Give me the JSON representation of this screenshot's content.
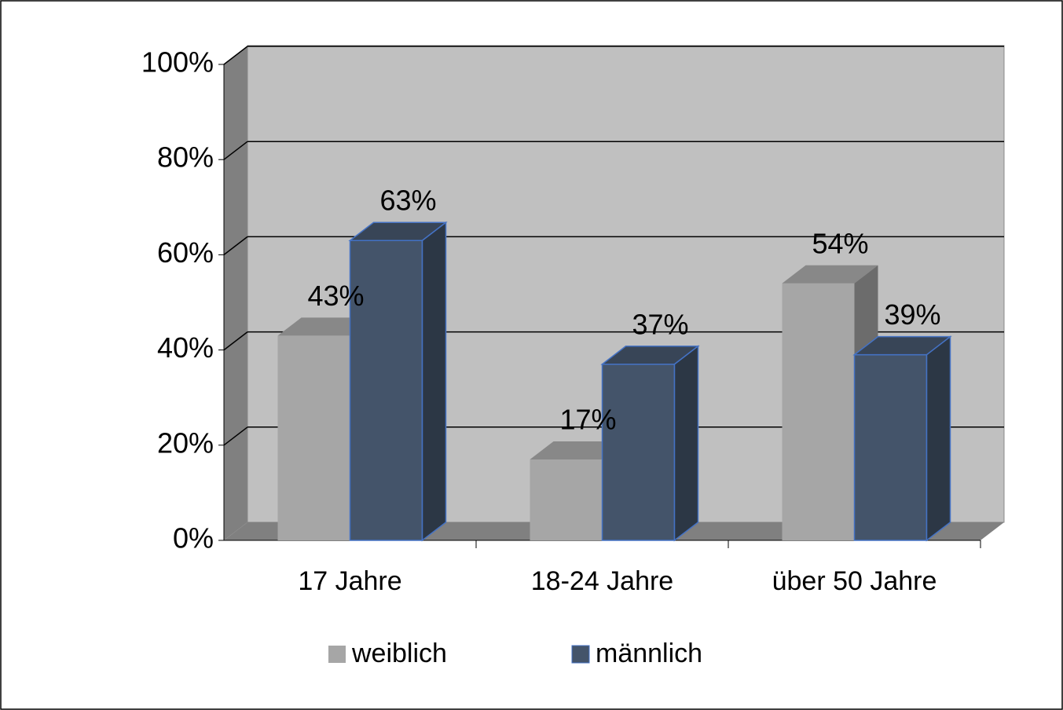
{
  "chart_data": {
    "type": "bar3d",
    "categories": [
      "17 Jahre",
      "18-24 Jahre",
      "über 50 Jahre"
    ],
    "series": [
      {
        "name": "weiblich",
        "color": "#a6a6a6",
        "values": [
          43,
          17,
          54
        ],
        "value_labels": [
          "43%",
          "17%",
          "54%"
        ]
      },
      {
        "name": "männlich",
        "color": "#44546a",
        "values": [
          63,
          37,
          39
        ],
        "value_labels": [
          "63%",
          "37%",
          "39%"
        ]
      }
    ],
    "ylim": [
      0,
      100
    ],
    "yticks": [
      {
        "value": 0,
        "label": "0%"
      },
      {
        "value": 20,
        "label": "20%"
      },
      {
        "value": 40,
        "label": "40%"
      },
      {
        "value": 60,
        "label": "60%"
      },
      {
        "value": 80,
        "label": "80%"
      },
      {
        "value": 100,
        "label": "100%"
      }
    ],
    "grid": true,
    "legend": "bottom"
  }
}
